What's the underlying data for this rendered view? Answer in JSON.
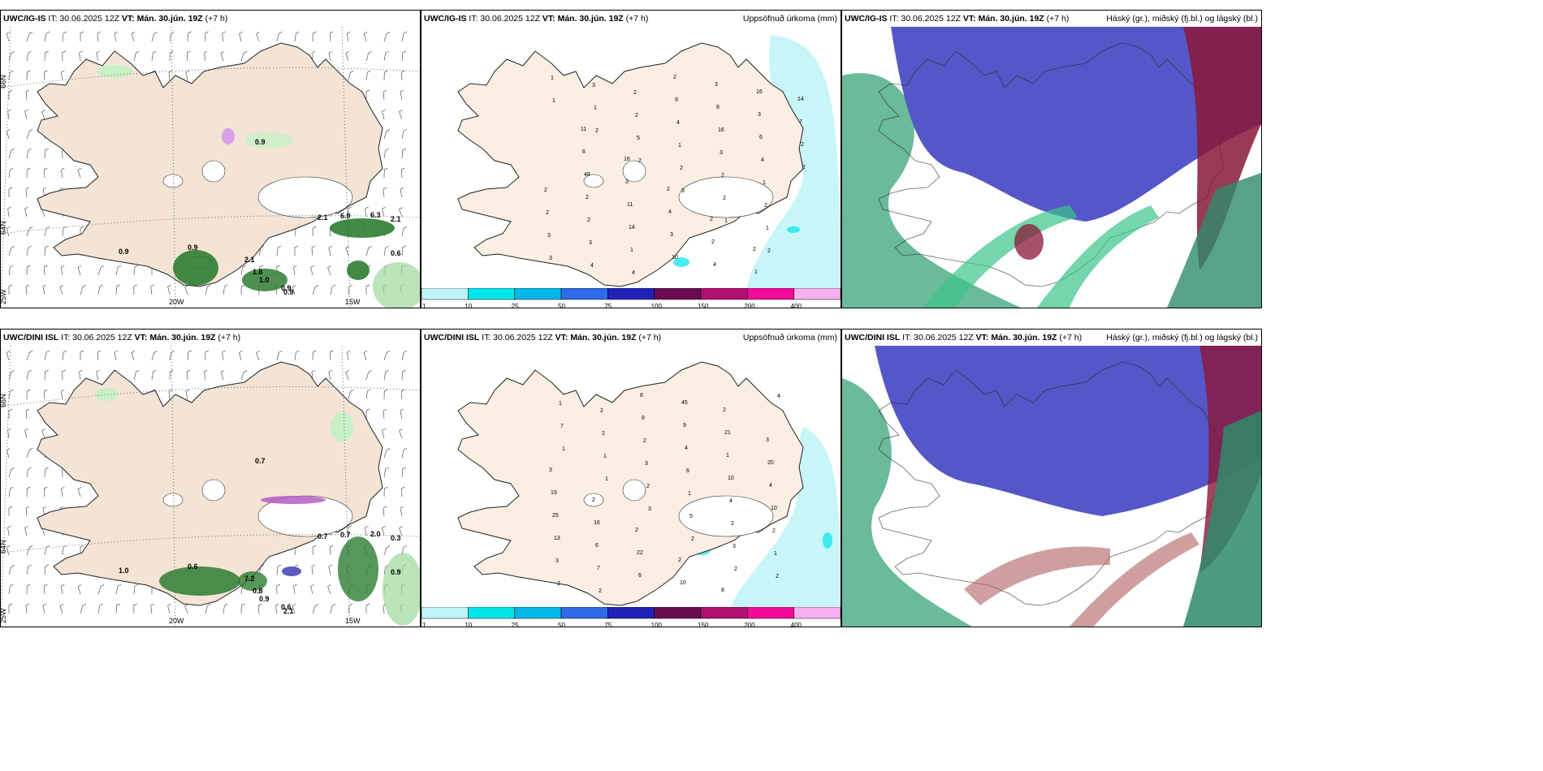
{
  "panels": [
    {
      "model": "UWC/IG-IS",
      "it": "IT: 30.06.2025 12Z",
      "vt_label": "VT:",
      "vt": "Mán. 30.jún. 19Z",
      "lead": "(+7 h)",
      "title": ""
    },
    {
      "model": "UWC/IG-IS",
      "it": "IT: 30.06.2025 12Z",
      "vt_label": "VT:",
      "vt": "Mán. 30.jún. 19Z",
      "lead": "(+7 h)",
      "title": "Uppsöfnuð úrkoma (mm)"
    },
    {
      "model": "UWC/IG-IS",
      "it": "IT: 30.06.2025 12Z",
      "vt_label": "VT:",
      "vt": "Mán. 30.jún. 19Z",
      "lead": "(+7 h)",
      "title": "Háský (gr.), miðský (fj.bl.) og lágský (bl.)"
    },
    {
      "model": "UWC/DINI ISL",
      "it": "IT: 30.06.2025 12Z",
      "vt_label": "VT:",
      "vt": "Mán. 30.jún. 19Z",
      "lead": "(+7 h)",
      "title": ""
    },
    {
      "model": "UWC/DINI ISL",
      "it": "IT: 30.06.2025 12Z",
      "vt_label": "VT:",
      "vt": "Mán. 30.jún. 19Z",
      "lead": "(+7 h)",
      "title": "Uppsöfnuð úrkoma (mm)"
    },
    {
      "model": "UWC/DINI ISL",
      "it": "IT: 30.06.2025 12Z",
      "vt_label": "VT:",
      "vt": "Mán. 30.jún. 19Z",
      "lead": "(+7 h)",
      "title": "Háský (gr.), miðský (fj.bl.) og lágský (bl.)"
    }
  ],
  "grid_labels": {
    "lat66": "66N",
    "lat64": "64N",
    "lon25": "25W",
    "lon20": "20W",
    "lon15": "15W"
  },
  "colorbar": {
    "ticks": [
      "1",
      "10",
      "25",
      "50",
      "75",
      "100",
      "150",
      "200",
      "400"
    ],
    "colors": [
      "#bff5f8",
      "#00e6ea",
      "#00b7e6",
      "#2f6be6",
      "#2022b8",
      "#6a0d4e",
      "#b0106e",
      "#f20a9a",
      "#f6b0ee"
    ]
  },
  "wind_values_top": [
    "0.9",
    "0.9",
    "0.9",
    "6.0",
    "2.1",
    "6.3",
    "0.6",
    "1.6",
    "1.0",
    "0.9",
    "2.1",
    "0.9",
    "2.1"
  ],
  "wind_values_bottom": [
    "0.7",
    "0.6",
    "1.0",
    "0.7",
    "0.7",
    "2.0",
    "0.9",
    "0.8",
    "0.9",
    "0.6",
    "7.2",
    "2.1",
    "0.3"
  ],
  "precip_top": [
    "1",
    "2",
    "2",
    "3",
    "1",
    "2",
    "1",
    "1",
    "5",
    "2",
    "2",
    "1",
    "3",
    "3",
    "2",
    "1",
    "2",
    "2",
    "3",
    "4",
    "2",
    "4",
    "3",
    "1",
    "2",
    "3",
    "4",
    "9",
    "16",
    "4",
    "2",
    "2",
    "1",
    "2",
    "8",
    "6",
    "2",
    "2",
    "14",
    "10",
    "3",
    "3",
    "2",
    "48",
    "11",
    "3",
    "4",
    "16",
    "7",
    "6",
    "3",
    "4",
    "2",
    "1",
    "14",
    "11",
    "16",
    "2",
    "2",
    "2"
  ],
  "precip_bottom": [
    "1",
    "1",
    "3",
    "2",
    "2",
    "4",
    "7",
    "1",
    "2",
    "5",
    "3",
    "2",
    "1",
    "2",
    "3",
    "1",
    "2",
    "1",
    "2",
    "2",
    "2",
    "6",
    "4",
    "2",
    "3",
    "2",
    "8",
    "4",
    "10",
    "10",
    "13",
    "7",
    "8",
    "9",
    "1",
    "4",
    "25",
    "6",
    "6",
    "45",
    "21",
    "20",
    "19",
    "16",
    "22",
    "10",
    "2",
    "3",
    "3",
    "2",
    "2",
    "2",
    "8"
  ]
}
